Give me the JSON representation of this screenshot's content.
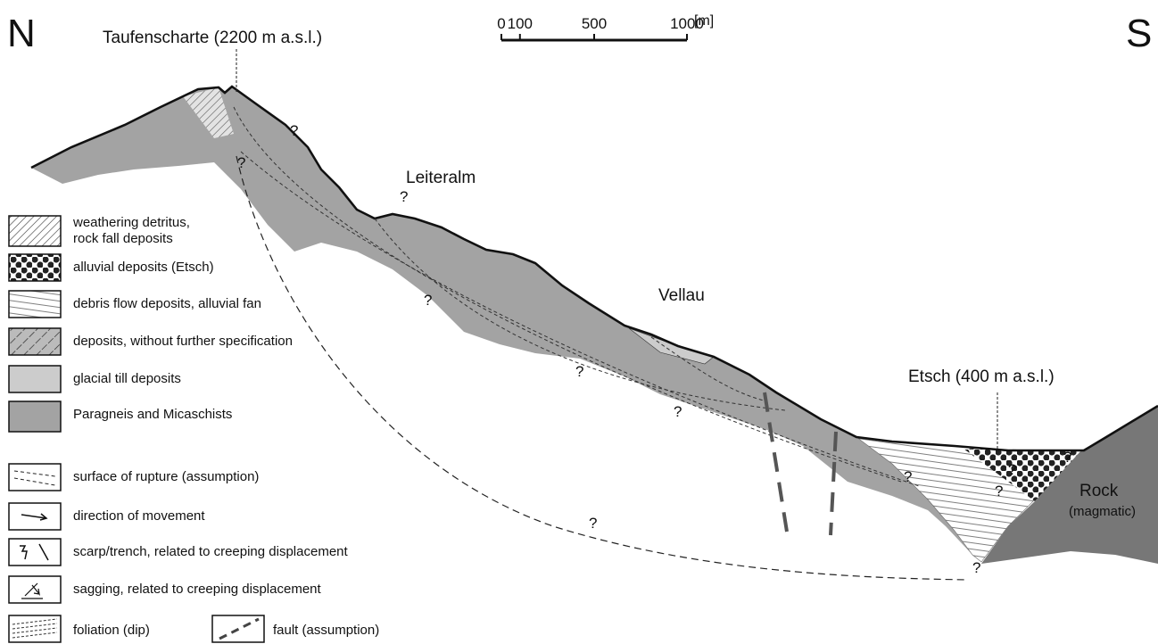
{
  "header": {
    "north": "N",
    "south": "S"
  },
  "scale_bar": {
    "ticks": [
      0,
      100,
      500,
      1000
    ],
    "unit": "[m]"
  },
  "labels": {
    "taufenscharte": "Taufenscharte (2200 m a.s.l.)",
    "leiteralm": "Leiteralm",
    "vellau": "Vellau",
    "etsch": "Etsch (400 m a.s.l.)",
    "rock": "Rock",
    "rock_note": "(magmatic)"
  },
  "uncertain_marks": [
    "?",
    "?",
    "?",
    "?",
    "?",
    "?",
    "?",
    "?",
    "?",
    "?",
    "?",
    "?"
  ],
  "legend": {
    "units": [
      "weathering detritus,\nrock fall deposits",
      "alluvial deposits (Etsch)",
      "debris flow deposits, alluvial fan",
      "deposits, without further specification",
      "glacial till deposits",
      "Paragneis and Micaschists"
    ],
    "symbols": [
      "surface of rupture (assumption)",
      "direction of movement",
      "scarp/trench, related to creeping displacement",
      "sagging, related to creeping displacement"
    ],
    "foliation": "foliation (dip)",
    "fault": "fault (assumption)"
  }
}
